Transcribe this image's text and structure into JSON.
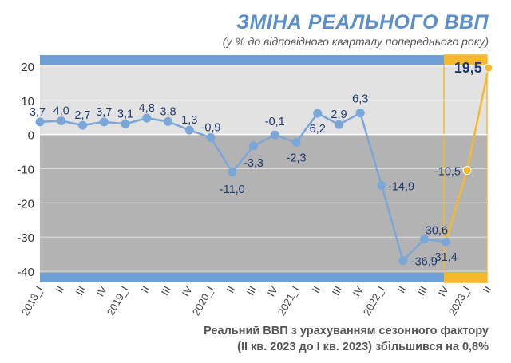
{
  "header": {
    "title": "ЗМІНА РЕАЛЬНОГО ВВП",
    "subtitle": "(у % до відповідного кварталу попереднього року)"
  },
  "footnote": {
    "line1": "Реальний ВВП з урахуванням сезонного фактору",
    "line2": "(ІІ кв. 2023 до І кв. 2023) збільшився на 0,8%"
  },
  "colors": {
    "historical": "#7aa6d8",
    "forecast": "#f5b82e",
    "band_blue": "#6ea0d6",
    "bg_positive": "#e2e2e2",
    "bg_negative": "#b3b3b3",
    "label": "#1f3a6e"
  },
  "chart_data": {
    "type": "line",
    "categories": [
      "2018_I",
      "II",
      "III",
      "IV",
      "2019_I",
      "II",
      "III",
      "IV",
      "2020_I",
      "II",
      "III",
      "IV",
      "2021_I",
      "II",
      "III",
      "IV",
      "2022_I",
      "II",
      "III",
      "IV",
      "2023_I",
      "II"
    ],
    "series": [
      {
        "values": [
          3.7,
          4.0,
          2.7,
          3.7,
          3.1,
          4.8,
          3.8,
          1.3,
          -0.9,
          -11.0,
          -3.3,
          -0.1,
          -2.3,
          6.2,
          2.9,
          6.3,
          -14.9,
          -36.9,
          -30.6,
          -31.4,
          null,
          null
        ],
        "labels": [
          "3,7",
          "4,0",
          "2,7",
          "3,7",
          "3,1",
          "4,8",
          "3,8",
          "1,3",
          "-0,9",
          "-11,0",
          "-3,3",
          "-0,1",
          "-2,3",
          "6,2",
          "2,9",
          "6,3",
          "-14,9",
          "-36,9",
          "-30,6",
          "-31,4",
          null,
          null
        ]
      },
      {
        "values": [
          null,
          null,
          null,
          null,
          null,
          null,
          null,
          null,
          null,
          null,
          null,
          null,
          null,
          null,
          null,
          null,
          null,
          null,
          null,
          -31.4,
          -10.5,
          19.5
        ],
        "labels": [
          null,
          null,
          null,
          null,
          null,
          null,
          null,
          null,
          null,
          null,
          null,
          null,
          null,
          null,
          null,
          null,
          null,
          null,
          null,
          null,
          "-10,5",
          "19,5"
        ]
      }
    ],
    "yticks": [
      "20",
      "10",
      "0",
      "-10",
      "-20",
      "-30",
      "-40"
    ],
    "ylim": [
      -40,
      20
    ],
    "grid": true
  }
}
